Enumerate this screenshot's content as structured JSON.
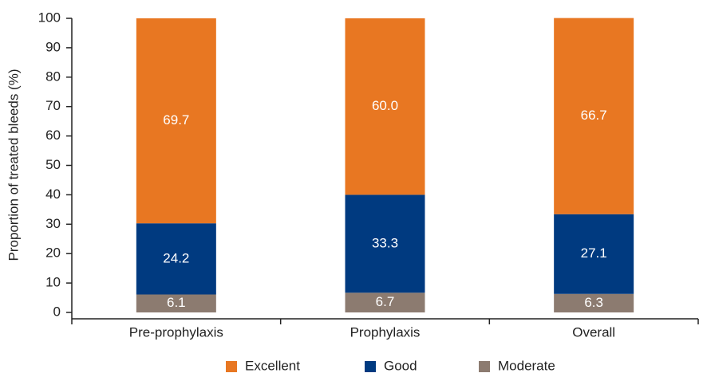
{
  "chart_data": {
    "type": "stacked_bar",
    "y_label": "Proportion of treated bleeds (%)",
    "categories": [
      "Pre-prophylaxis",
      "Prophylaxis",
      "Overall"
    ],
    "series": [
      {
        "name": "Excellent",
        "color": "#e87722",
        "values": [
          69.7,
          60.0,
          66.7
        ],
        "value_labels": [
          "69.7",
          "60.0",
          "66.7"
        ]
      },
      {
        "name": "Good",
        "color": "#003a80",
        "values": [
          24.2,
          33.3,
          27.1
        ],
        "value_labels": [
          "24.2",
          "33.3",
          "27.1"
        ]
      },
      {
        "name": "Moderate",
        "color": "#8c7b70",
        "values": [
          6.1,
          6.7,
          6.3
        ],
        "value_labels": [
          "6.1",
          "6.7",
          "6.3"
        ]
      }
    ],
    "ylim": [
      0,
      100
    ],
    "yticks": [
      0,
      10,
      20,
      30,
      40,
      50,
      60,
      70,
      80,
      90,
      100
    ],
    "grid": false,
    "legend": "bottom"
  }
}
